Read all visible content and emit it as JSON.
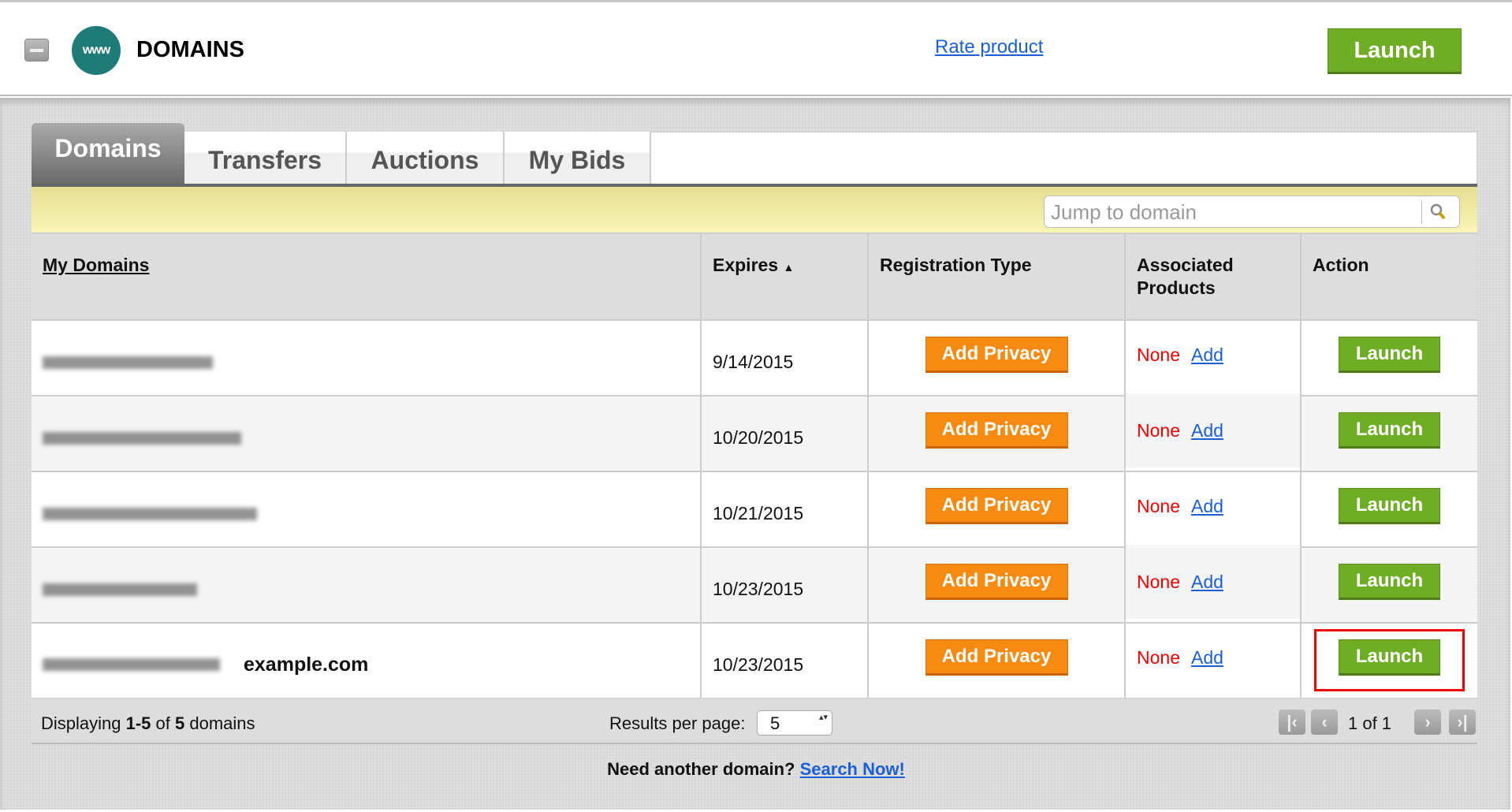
{
  "header": {
    "title": "DOMAINS",
    "logo_text": "www",
    "rate_link": "Rate product",
    "launch_label": "Launch"
  },
  "tabs": [
    {
      "label": "Domains",
      "active": true
    },
    {
      "label": "Transfers"
    },
    {
      "label": "Auctions"
    },
    {
      "label": "My Bids"
    }
  ],
  "search": {
    "placeholder": "Jump to domain"
  },
  "table": {
    "columns": [
      "My Domains",
      "Expires",
      "Registration Type",
      "Associated Products",
      "Action"
    ],
    "sort_column": "Expires",
    "sort_direction": "ascending",
    "rows": [
      {
        "expires": "9/14/2015",
        "registration": "Add Privacy",
        "products": "None",
        "add": "Add",
        "action": "Launch"
      },
      {
        "expires": "10/20/2015",
        "registration": "Add Privacy",
        "products": "None",
        "add": "Add",
        "action": "Launch"
      },
      {
        "expires": "10/21/2015",
        "registration": "Add Privacy",
        "products": "None",
        "add": "Add",
        "action": "Launch"
      },
      {
        "expires": "10/23/2015",
        "registration": "Add Privacy",
        "products": "None",
        "add": "Add",
        "action": "Launch"
      },
      {
        "expires": "10/23/2015",
        "registration": "Add Privacy",
        "products": "None",
        "add": "Add",
        "action": "Launch",
        "annotation": "example.com",
        "highlighted": true
      }
    ]
  },
  "footer": {
    "displaying_prefix": "Displaying ",
    "range": "1-5",
    "of": " of ",
    "total": "5",
    "suffix": " domains",
    "results_label": "Results per page:",
    "results_value": "5",
    "page_text": "1 of 1"
  },
  "bottom": {
    "question": "Need another domain?",
    "link": "Search Now!"
  },
  "colors": {
    "launch": "#6fae24",
    "privacy": "#f78b12",
    "none": "#e00000",
    "highlight": "#e00000",
    "link": "#1a5fd6"
  }
}
